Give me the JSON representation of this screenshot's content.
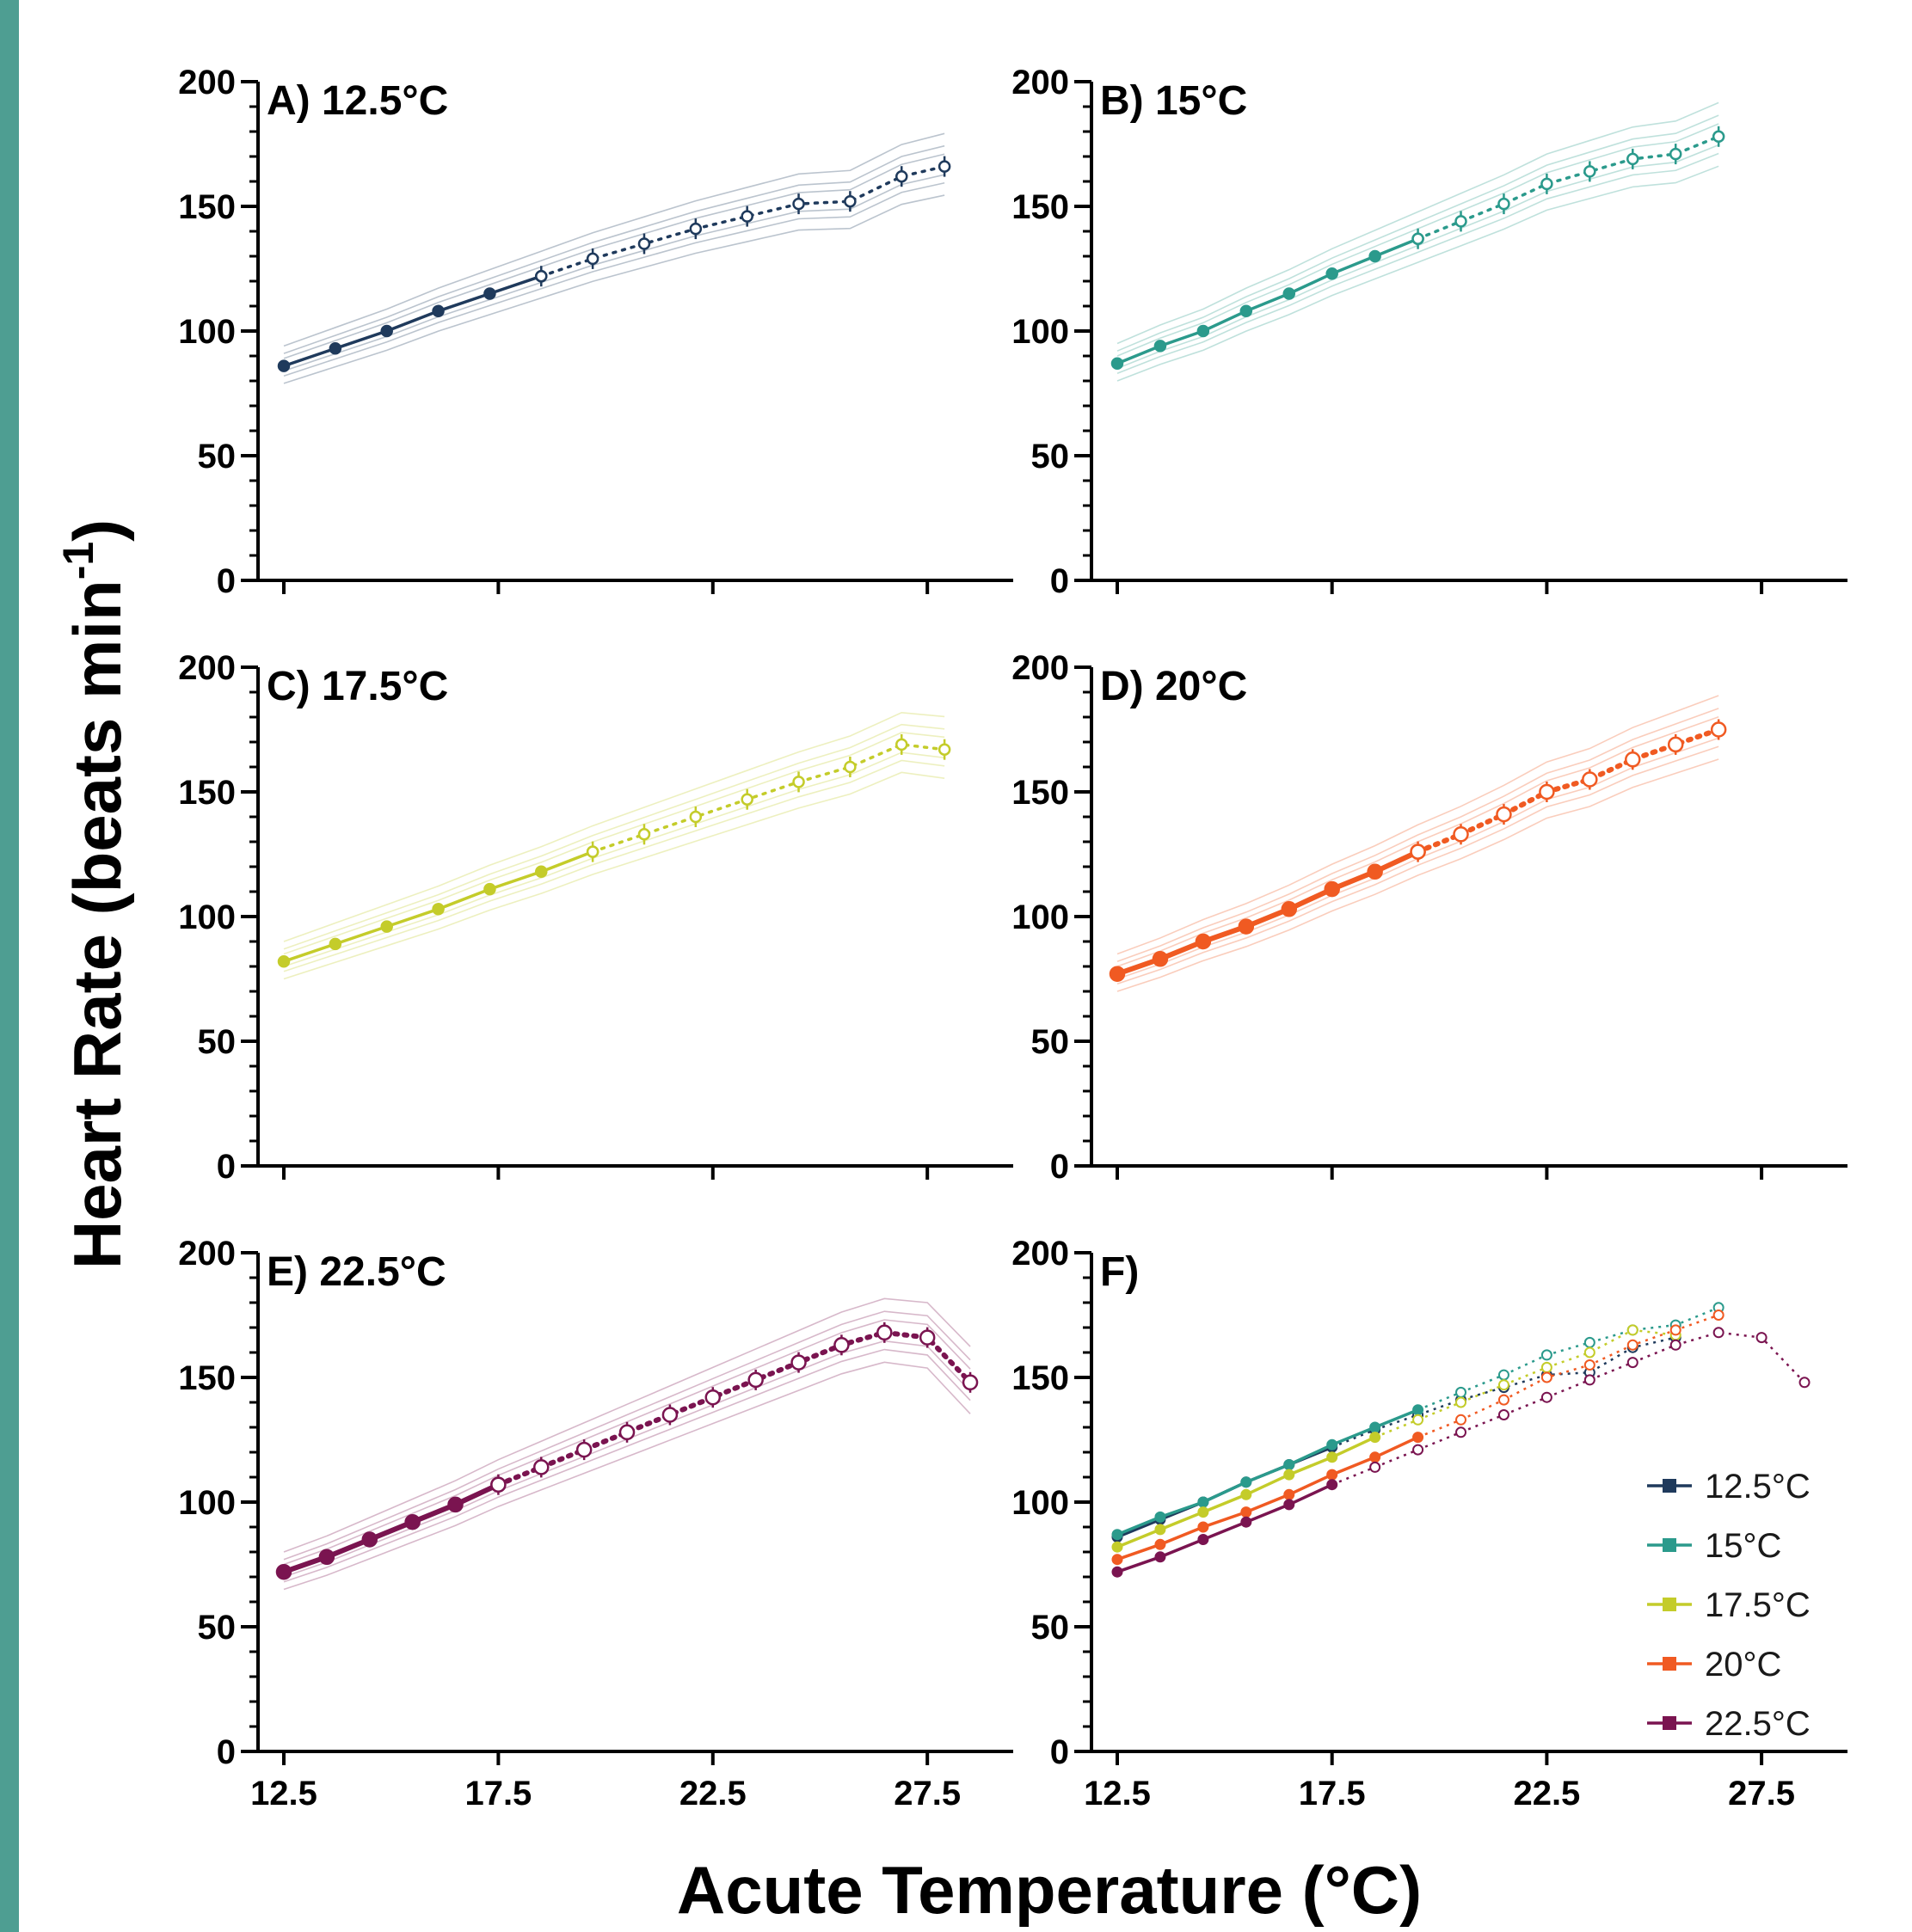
{
  "figure": {
    "ylabel_main": "Heart Rate (beats min",
    "ylabel_sup": "-1",
    "ylabel_close": ")",
    "xlabel": "Acute Temperature (°C)"
  },
  "chart_data": [
    {
      "type": "line",
      "title": "A) 12.5°C",
      "xlim": [
        12.5,
        29
      ],
      "ylim": [
        0,
        200
      ],
      "yticks": [
        0,
        50,
        100,
        150,
        200
      ],
      "xticks": [
        "12.5",
        "17.5",
        "22.5",
        "27.5"
      ],
      "show_xtick_labels": false,
      "color": "#1f3a5c",
      "series": [
        {
          "x": [
            12.5,
            13.7,
            14.9,
            16.1,
            17.3,
            18.5
          ],
          "values": [
            86,
            93,
            100,
            108,
            115,
            122
          ],
          "style": "solid"
        },
        {
          "x": [
            18.5,
            19.7,
            20.9,
            22.1,
            23.3,
            24.5,
            25.7,
            26.9,
            27.9
          ],
          "values": [
            122,
            129,
            135,
            141,
            146,
            151,
            152,
            162,
            166
          ],
          "style": "dotted"
        }
      ]
    },
    {
      "type": "line",
      "title": "B) 15°C",
      "xlim": [
        12.5,
        29
      ],
      "ylim": [
        0,
        200
      ],
      "yticks": [
        0,
        50,
        100,
        150,
        200
      ],
      "xticks": [
        "12.5",
        "17.5",
        "22.5",
        "27.5"
      ],
      "show_xtick_labels": false,
      "color": "#2b9a8c",
      "series": [
        {
          "x": [
            12.5,
            13.5,
            14.5,
            15.5,
            16.5,
            17.5,
            18.5,
            19.5
          ],
          "values": [
            87,
            94,
            100,
            108,
            115,
            123,
            130,
            137
          ],
          "style": "solid"
        },
        {
          "x": [
            19.5,
            20.5,
            21.5,
            22.5,
            23.5,
            24.5,
            25.5,
            26.5
          ],
          "values": [
            137,
            144,
            151,
            159,
            164,
            169,
            171,
            178
          ],
          "style": "dotted"
        }
      ]
    },
    {
      "type": "line",
      "title": "C) 17.5°C",
      "xlim": [
        12.5,
        29
      ],
      "ylim": [
        0,
        200
      ],
      "yticks": [
        0,
        50,
        100,
        150,
        200
      ],
      "xticks": [
        "12.5",
        "17.5",
        "22.5",
        "27.5"
      ],
      "show_xtick_labels": false,
      "color": "#c4cc2a",
      "series": [
        {
          "x": [
            12.5,
            13.7,
            14.9,
            16.1,
            17.3,
            18.5,
            19.7
          ],
          "values": [
            82,
            89,
            96,
            103,
            111,
            118,
            126
          ],
          "style": "solid"
        },
        {
          "x": [
            19.7,
            20.9,
            22.1,
            23.3,
            24.5,
            25.7,
            26.9,
            27.9
          ],
          "values": [
            126,
            133,
            140,
            147,
            154,
            160,
            169,
            167
          ],
          "style": "dotted"
        }
      ]
    },
    {
      "type": "line",
      "title": "D) 20°C",
      "xlim": [
        12.5,
        29
      ],
      "ylim": [
        0,
        200
      ],
      "yticks": [
        0,
        50,
        100,
        150,
        200
      ],
      "xticks": [
        "12.5",
        "17.5",
        "22.5",
        "27.5"
      ],
      "show_xtick_labels": false,
      "color": "#f05a22",
      "series": [
        {
          "x": [
            12.5,
            13.5,
            14.5,
            15.5,
            16.5,
            17.5,
            18.5,
            19.5
          ],
          "values": [
            77,
            83,
            90,
            96,
            103,
            111,
            118,
            126
          ],
          "style": "solid"
        },
        {
          "x": [
            19.5,
            20.5,
            21.5,
            22.5,
            23.5,
            24.5,
            25.5,
            26.5
          ],
          "values": [
            126,
            133,
            141,
            150,
            155,
            163,
            169,
            175
          ],
          "style": "dotted"
        }
      ]
    },
    {
      "type": "line",
      "title": "E) 22.5°C",
      "xlim": [
        12.5,
        29
      ],
      "ylim": [
        0,
        200
      ],
      "yticks": [
        0,
        50,
        100,
        150,
        200
      ],
      "xticks": [
        "12.5",
        "17.5",
        "22.5",
        "27.5"
      ],
      "show_xtick_labels": true,
      "color": "#7a1450",
      "series": [
        {
          "x": [
            12.5,
            13.5,
            14.5,
            15.5,
            16.5,
            17.5
          ],
          "values": [
            72,
            78,
            85,
            92,
            99,
            107
          ],
          "style": "solid"
        },
        {
          "x": [
            17.5,
            18.5,
            19.5,
            20.5,
            21.5,
            22.5,
            23.5,
            24.5,
            25.5,
            26.5,
            27.5,
            28.5
          ],
          "values": [
            107,
            114,
            121,
            128,
            135,
            142,
            149,
            156,
            163,
            168,
            166,
            148
          ],
          "style": "dotted"
        }
      ]
    },
    {
      "type": "line",
      "title": "F)",
      "xlim": [
        12.5,
        29
      ],
      "ylim": [
        0,
        200
      ],
      "yticks": [
        0,
        50,
        100,
        150,
        200
      ],
      "xticks": [
        "12.5",
        "17.5",
        "22.5",
        "27.5"
      ],
      "show_xtick_labels": true,
      "legend_position": "bottom-right",
      "series": [
        {
          "name": "12.5°C",
          "color": "#1f3a5c",
          "x": [
            12.5,
            13.5,
            14.5,
            15.5,
            16.5,
            17.5,
            18.5,
            19.5,
            20.5,
            21.5,
            22.5,
            23.5,
            24.5,
            25.5
          ],
          "values": [
            86,
            93,
            100,
            108,
            115,
            122,
            129,
            135,
            141,
            146,
            151,
            152,
            162,
            166
          ],
          "solid_until": 17.5
        },
        {
          "name": "15°C",
          "color": "#2b9a8c",
          "x": [
            12.5,
            13.5,
            14.5,
            15.5,
            16.5,
            17.5,
            18.5,
            19.5,
            20.5,
            21.5,
            22.5,
            23.5,
            24.5,
            25.5,
            26.5
          ],
          "values": [
            87,
            94,
            100,
            108,
            115,
            123,
            130,
            137,
            144,
            151,
            159,
            164,
            169,
            171,
            178
          ],
          "solid_until": 19.5
        },
        {
          "name": "17.5°C",
          "color": "#c4cc2a",
          "x": [
            12.5,
            13.5,
            14.5,
            15.5,
            16.5,
            17.5,
            18.5,
            19.5,
            20.5,
            21.5,
            22.5,
            23.5,
            24.5,
            25.5
          ],
          "values": [
            82,
            89,
            96,
            103,
            111,
            118,
            126,
            133,
            140,
            147,
            154,
            160,
            169,
            167
          ],
          "solid_until": 18.5
        },
        {
          "name": "20°C",
          "color": "#f05a22",
          "x": [
            12.5,
            13.5,
            14.5,
            15.5,
            16.5,
            17.5,
            18.5,
            19.5,
            20.5,
            21.5,
            22.5,
            23.5,
            24.5,
            25.5,
            26.5
          ],
          "values": [
            77,
            83,
            90,
            96,
            103,
            111,
            118,
            126,
            133,
            141,
            150,
            155,
            163,
            169,
            175
          ],
          "solid_until": 19.5
        },
        {
          "name": "22.5°C",
          "color": "#7a1450",
          "x": [
            12.5,
            13.5,
            14.5,
            15.5,
            16.5,
            17.5,
            18.5,
            19.5,
            20.5,
            21.5,
            22.5,
            23.5,
            24.5,
            25.5,
            26.5,
            27.5,
            28.5
          ],
          "values": [
            72,
            78,
            85,
            92,
            99,
            107,
            114,
            121,
            128,
            135,
            142,
            149,
            156,
            163,
            168,
            166,
            148
          ],
          "solid_until": 17.5
        }
      ]
    }
  ]
}
